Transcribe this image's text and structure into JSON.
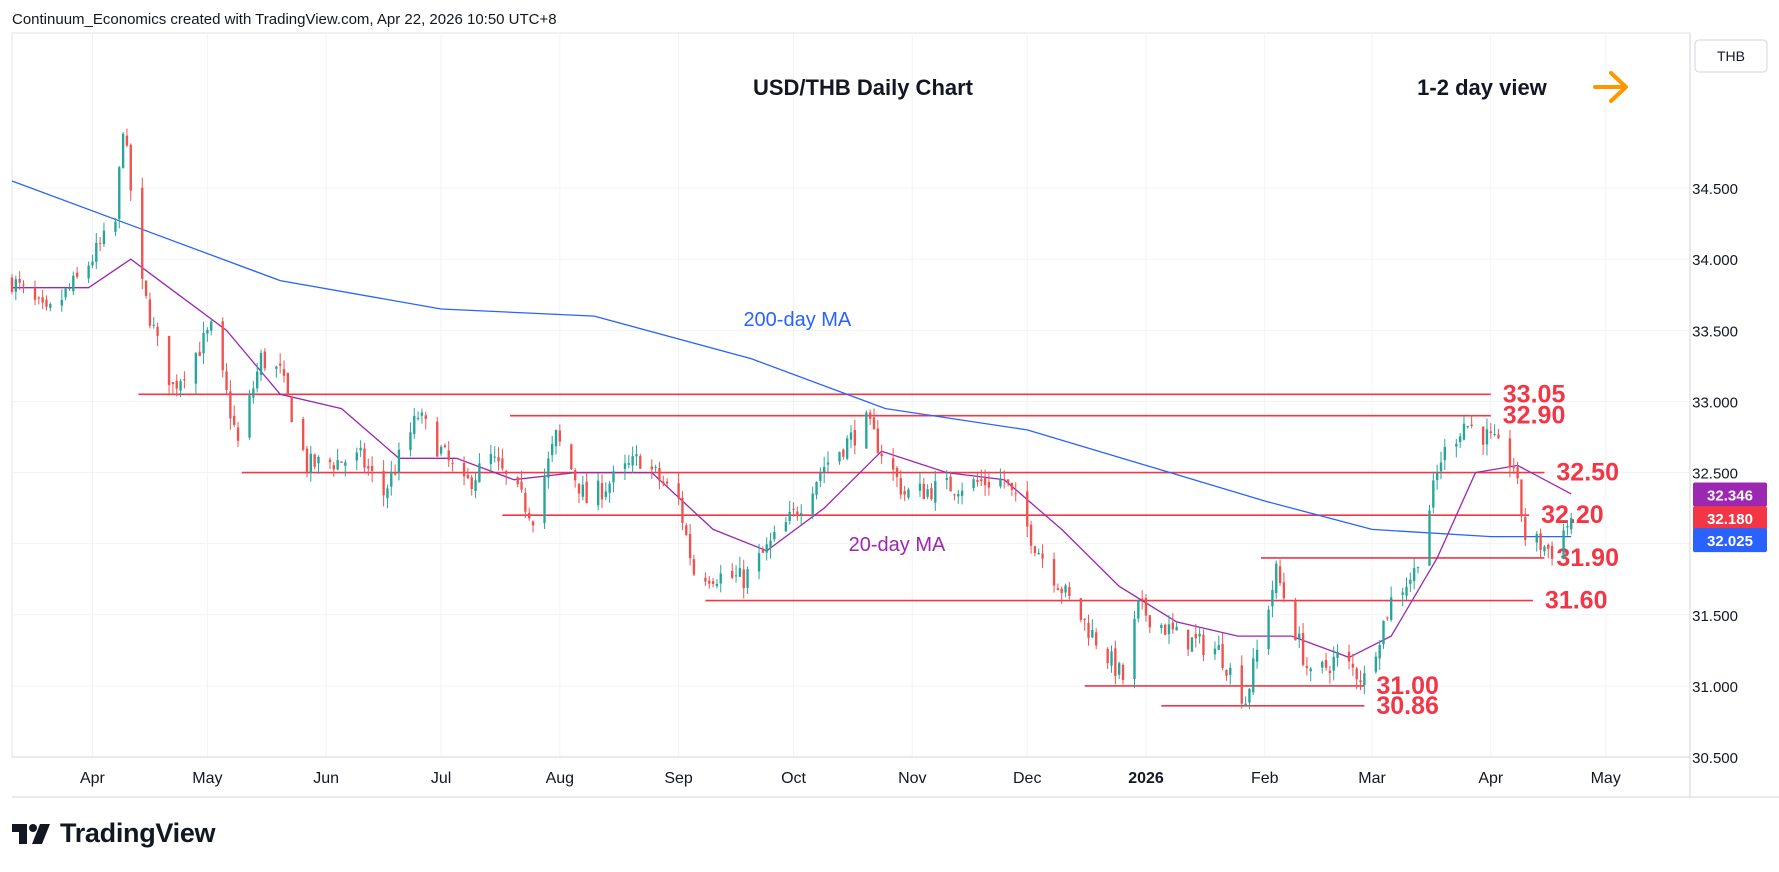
{
  "header": {
    "attribution": "Continuum_Economics created with TradingView.com, Apr 22, 2026 10:50 UTC+8"
  },
  "footer": {
    "brand": "TradingView"
  },
  "chart_data": {
    "type": "candlestick",
    "title": "USD/THB Daily Chart",
    "view_label": "1-2 day view",
    "view_arrow": "right-arrow-icon",
    "currency": "THB",
    "ylim": [
      30.5,
      35.0
    ],
    "yticks": [
      "30.500",
      "31.000",
      "31.500",
      "32.000",
      "32.500",
      "33.000",
      "33.500",
      "34.000",
      "34.500"
    ],
    "xticks": [
      "Apr",
      "May",
      "Jun",
      "Jul",
      "Aug",
      "Sep",
      "Oct",
      "Nov",
      "Dec",
      "2026",
      "Feb",
      "Mar",
      "Apr",
      "May"
    ],
    "x_range": [
      "2025-03-11",
      "2026-05-23"
    ],
    "grid": true,
    "colors": {
      "up": "#26a69a",
      "down": "#ef5350",
      "ma20": "#9c27b0",
      "ma200": "#2962ff",
      "levels": "#f23645",
      "arrow": "#ff9800",
      "tag_ma20": "#9c27b0",
      "tag_last": "#f23645",
      "tag_ma200": "#2962ff"
    },
    "price_tags": [
      {
        "label": "32.346",
        "value": 32.346,
        "color": "#9c27b0"
      },
      {
        "label": "32.180",
        "value": 32.18,
        "color": "#f23645"
      },
      {
        "label": "32.025",
        "value": 32.025,
        "color": "#2962ff"
      }
    ],
    "levels": [
      {
        "label": "33.05",
        "value": 33.05,
        "from": "2025-04-13",
        "to": "2026-04-01"
      },
      {
        "label": "32.90",
        "value": 32.9,
        "from": "2025-07-19",
        "to": "2026-04-01"
      },
      {
        "label": "32.50",
        "value": 32.5,
        "from": "2025-05-10",
        "to": "2026-04-15"
      },
      {
        "label": "32.20",
        "value": 32.2,
        "from": "2025-07-17",
        "to": "2026-04-11"
      },
      {
        "label": "31.90",
        "value": 31.9,
        "from": "2026-01-31",
        "to": "2026-04-15"
      },
      {
        "label": "31.60",
        "value": 31.6,
        "from": "2025-09-08",
        "to": "2026-04-12"
      },
      {
        "label": "31.00",
        "value": 31.0,
        "from": "2025-12-16",
        "to": "2026-02-27"
      },
      {
        "label": "30.86",
        "value": 30.86,
        "from": "2026-01-05",
        "to": "2026-02-27"
      }
    ],
    "annotations": [
      {
        "label": "200-day MA",
        "date": "2025-10-02",
        "value": 33.53,
        "color": "#2962ff"
      },
      {
        "label": "20-day MA",
        "date": "2025-10-28",
        "value": 31.95,
        "color": "#9c27b0"
      }
    ],
    "anchors": [
      {
        "date": "2025-03-11",
        "price": 33.85
      },
      {
        "date": "2025-03-20",
        "price": 33.6
      },
      {
        "date": "2025-03-28",
        "price": 33.85
      },
      {
        "date": "2025-04-07",
        "price": 34.25
      },
      {
        "date": "2025-04-09",
        "price": 34.95
      },
      {
        "date": "2025-04-14",
        "price": 33.8
      },
      {
        "date": "2025-04-18",
        "price": 33.4
      },
      {
        "date": "2025-04-22",
        "price": 33.1
      },
      {
        "date": "2025-05-02",
        "price": 33.5
      },
      {
        "date": "2025-05-09",
        "price": 32.7
      },
      {
        "date": "2025-05-15",
        "price": 33.3
      },
      {
        "date": "2025-05-20",
        "price": 33.2
      },
      {
        "date": "2025-05-27",
        "price": 32.55
      },
      {
        "date": "2025-06-10",
        "price": 32.6
      },
      {
        "date": "2025-06-16",
        "price": 32.35
      },
      {
        "date": "2025-06-25",
        "price": 32.9
      },
      {
        "date": "2025-07-07",
        "price": 32.4
      },
      {
        "date": "2025-07-14",
        "price": 32.6
      },
      {
        "date": "2025-07-25",
        "price": 32.2
      },
      {
        "date": "2025-07-31",
        "price": 32.75
      },
      {
        "date": "2025-08-08",
        "price": 32.3
      },
      {
        "date": "2025-08-22",
        "price": 32.6
      },
      {
        "date": "2025-09-01",
        "price": 32.3
      },
      {
        "date": "2025-09-05",
        "price": 31.8
      },
      {
        "date": "2025-09-18",
        "price": 31.75
      },
      {
        "date": "2025-10-01",
        "price": 32.2
      },
      {
        "date": "2025-10-09",
        "price": 32.55
      },
      {
        "date": "2025-10-20",
        "price": 32.85
      },
      {
        "date": "2025-10-30",
        "price": 32.35
      },
      {
        "date": "2025-11-10",
        "price": 32.4
      },
      {
        "date": "2025-11-25",
        "price": 32.45
      },
      {
        "date": "2025-12-03",
        "price": 32.0
      },
      {
        "date": "2025-12-12",
        "price": 31.6
      },
      {
        "date": "2025-12-26",
        "price": 31.05
      },
      {
        "date": "2025-12-30",
        "price": 31.55
      },
      {
        "date": "2026-01-09",
        "price": 31.35
      },
      {
        "date": "2026-01-20",
        "price": 31.25
      },
      {
        "date": "2026-01-27",
        "price": 30.9
      },
      {
        "date": "2026-02-04",
        "price": 31.8
      },
      {
        "date": "2026-02-13",
        "price": 31.05
      },
      {
        "date": "2026-02-20",
        "price": 31.2
      },
      {
        "date": "2026-02-27",
        "price": 31.05
      },
      {
        "date": "2026-03-06",
        "price": 31.6
      },
      {
        "date": "2026-03-12",
        "price": 31.8
      },
      {
        "date": "2026-03-19",
        "price": 32.6
      },
      {
        "date": "2026-03-25",
        "price": 32.85
      },
      {
        "date": "2026-03-31",
        "price": 32.75
      },
      {
        "date": "2026-04-07",
        "price": 32.55
      },
      {
        "date": "2026-04-10",
        "price": 32.05
      },
      {
        "date": "2026-04-17",
        "price": 31.95
      },
      {
        "date": "2026-04-22",
        "price": 32.18
      }
    ],
    "ma20": [
      {
        "date": "2025-03-11",
        "value": 33.8
      },
      {
        "date": "2025-03-31",
        "value": 33.8
      },
      {
        "date": "2025-04-11",
        "value": 34.0
      },
      {
        "date": "2025-04-21",
        "value": 33.8
      },
      {
        "date": "2025-05-06",
        "value": 33.5
      },
      {
        "date": "2025-05-20",
        "value": 33.05
      },
      {
        "date": "2025-06-05",
        "value": 32.95
      },
      {
        "date": "2025-06-20",
        "value": 32.6
      },
      {
        "date": "2025-07-05",
        "value": 32.6
      },
      {
        "date": "2025-07-20",
        "value": 32.45
      },
      {
        "date": "2025-08-05",
        "value": 32.5
      },
      {
        "date": "2025-08-25",
        "value": 32.5
      },
      {
        "date": "2025-09-10",
        "value": 32.1
      },
      {
        "date": "2025-09-24",
        "value": 31.95
      },
      {
        "date": "2025-10-09",
        "value": 32.25
      },
      {
        "date": "2025-10-24",
        "value": 32.65
      },
      {
        "date": "2025-11-10",
        "value": 32.5
      },
      {
        "date": "2025-11-25",
        "value": 32.45
      },
      {
        "date": "2025-12-10",
        "value": 32.1
      },
      {
        "date": "2025-12-25",
        "value": 31.7
      },
      {
        "date": "2026-01-09",
        "value": 31.45
      },
      {
        "date": "2026-01-25",
        "value": 31.35
      },
      {
        "date": "2026-02-08",
        "value": 31.35
      },
      {
        "date": "2026-02-23",
        "value": 31.2
      },
      {
        "date": "2026-03-06",
        "value": 31.35
      },
      {
        "date": "2026-03-18",
        "value": 31.9
      },
      {
        "date": "2026-03-28",
        "value": 32.5
      },
      {
        "date": "2026-04-08",
        "value": 32.55
      },
      {
        "date": "2026-04-22",
        "value": 32.35
      }
    ],
    "ma200": [
      {
        "date": "2025-03-11",
        "value": 34.55
      },
      {
        "date": "2025-04-10",
        "value": 34.25
      },
      {
        "date": "2025-05-20",
        "value": 33.85
      },
      {
        "date": "2025-07-01",
        "value": 33.65
      },
      {
        "date": "2025-08-10",
        "value": 33.6
      },
      {
        "date": "2025-09-20",
        "value": 33.3
      },
      {
        "date": "2025-10-25",
        "value": 32.95
      },
      {
        "date": "2025-12-01",
        "value": 32.8
      },
      {
        "date": "2026-01-01",
        "value": 32.55
      },
      {
        "date": "2026-02-01",
        "value": 32.3
      },
      {
        "date": "2026-03-01",
        "value": 32.1
      },
      {
        "date": "2026-04-01",
        "value": 32.05
      },
      {
        "date": "2026-04-22",
        "value": 32.05
      }
    ]
  }
}
